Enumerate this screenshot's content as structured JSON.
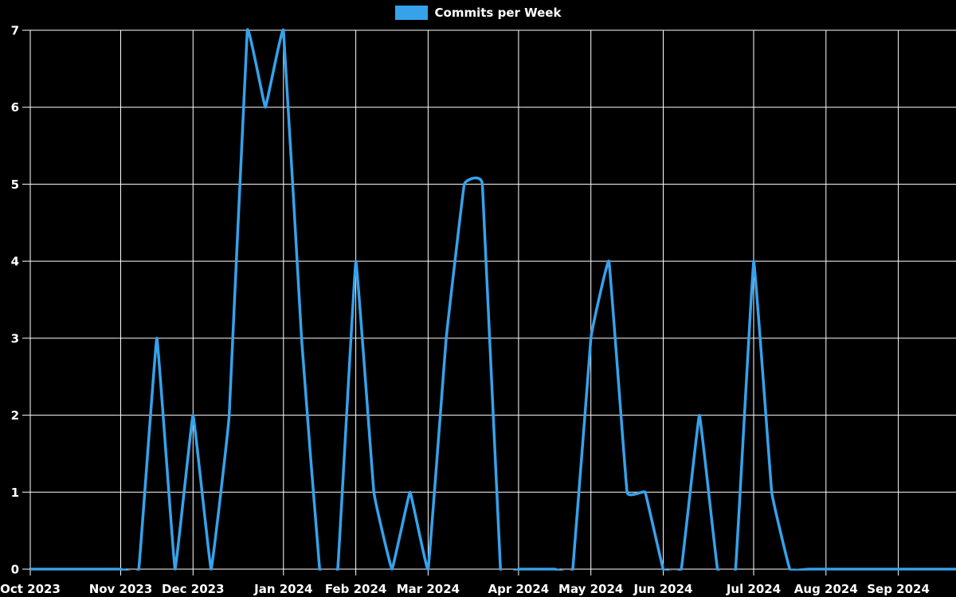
{
  "legend": {
    "label": "Commits per Week"
  },
  "colors": {
    "background": "#000000",
    "line": "#36a2eb",
    "grid": "#ffffff",
    "text": "#ffffff"
  },
  "chart_data": {
    "type": "line",
    "title": "Commits per Week",
    "legend_position": "top",
    "grid": true,
    "x_axis": {
      "tick_labels": [
        "Oct 2023",
        "Nov 2023",
        "Dec 2023",
        "Jan 2024",
        "Feb 2024",
        "Mar 2024",
        "Apr 2024",
        "May 2024",
        "Jun 2024",
        "Jul 2024",
        "Aug 2024",
        "Sep 2024"
      ],
      "tick_week_indices": [
        0,
        5,
        9,
        14,
        18,
        22,
        27,
        31,
        35,
        40,
        44,
        48
      ]
    },
    "y_axis": {
      "ticks": [
        0,
        1,
        2,
        3,
        4,
        5,
        6,
        7
      ],
      "range": [
        0,
        7
      ]
    },
    "series": [
      {
        "name": "Commits per Week",
        "color": "#36a2eb",
        "x_unit": "week",
        "values": [
          0,
          0,
          0,
          0,
          0,
          0,
          0,
          3,
          0,
          2,
          0,
          2,
          7,
          6,
          7,
          3,
          0,
          0,
          4,
          1,
          0,
          1,
          0,
          3,
          5,
          5,
          0,
          0,
          0,
          0,
          0,
          3,
          4,
          1,
          1,
          0,
          0,
          2,
          0,
          0,
          4,
          1,
          0,
          0,
          0,
          0,
          0,
          0,
          0,
          0,
          0,
          0
        ]
      }
    ]
  }
}
